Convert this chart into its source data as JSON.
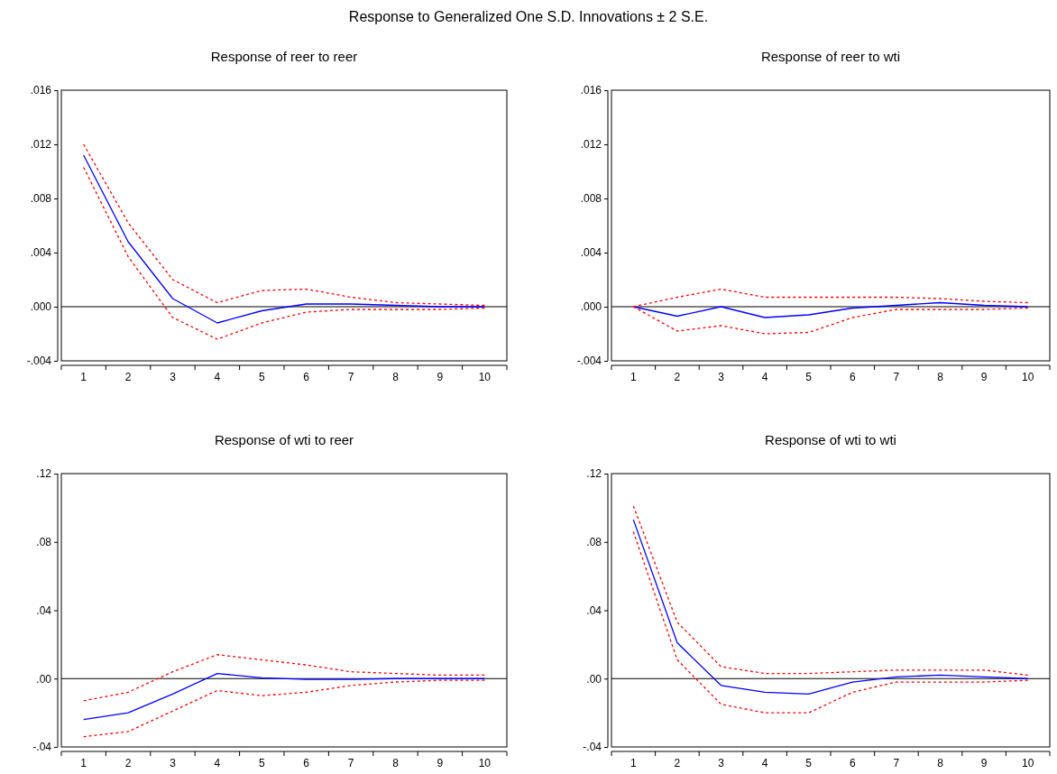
{
  "chart_data": [
    {
      "type": "line",
      "title": "Response of reer to reer",
      "annotations": [
        "Response to Generalized One S.D. Innovations ± 2 S.E."
      ],
      "categories": [
        "1",
        "2",
        "3",
        "4",
        "5",
        "6",
        "7",
        "8",
        "9",
        "10"
      ],
      "ylim": [
        -0.004,
        0.016
      ],
      "yticks": [
        {
          "value": 0.016,
          "label": ".016"
        },
        {
          "value": 0.012,
          "label": ".012"
        },
        {
          "value": 0.008,
          "label": ".008"
        },
        {
          "value": 0.004,
          "label": ".004"
        },
        {
          "value": 0,
          "label": ".000"
        },
        {
          "value": -0.004,
          "label": "-.004"
        }
      ],
      "ref_lines": [
        {
          "axis": "y",
          "value": 0,
          "color": "#000000"
        }
      ],
      "series": [
        {
          "color": "#0000ff",
          "line_style": "solid",
          "values": [
            0.0112,
            0.0048,
            0.0006,
            -0.0012,
            -0.0003,
            0.0002,
            0.0002,
            0.0001,
            0,
            0
          ]
        },
        {
          "color": "#ff0000",
          "line_style": "dotted",
          "values": [
            0.012,
            0.0062,
            0.002,
            0.0003,
            0.0012,
            0.0013,
            0.0007,
            0.0003,
            0.0002,
            0.0001
          ]
        },
        {
          "color": "#ff0000",
          "line_style": "dotted",
          "values": [
            0.0103,
            0.0037,
            -0.0008,
            -0.0024,
            -0.0012,
            -0.0004,
            -0.0002,
            -0.0002,
            -0.0002,
            -0.0001
          ]
        }
      ]
    },
    {
      "type": "line",
      "title": "Response of reer to wti",
      "categories": [
        "1",
        "2",
        "3",
        "4",
        "5",
        "6",
        "7",
        "8",
        "9",
        "10"
      ],
      "ylim": [
        -0.004,
        0.016
      ],
      "yticks": [
        {
          "value": 0.016,
          "label": ".016"
        },
        {
          "value": 0.012,
          "label": ".012"
        },
        {
          "value": 0.008,
          "label": ".008"
        },
        {
          "value": 0.004,
          "label": ".004"
        },
        {
          "value": 0,
          "label": ".000"
        },
        {
          "value": -0.004,
          "label": "-.004"
        }
      ],
      "ref_lines": [
        {
          "axis": "y",
          "value": 0,
          "color": "#000000"
        }
      ],
      "series": [
        {
          "color": "#0000ff",
          "line_style": "solid",
          "values": [
            0,
            -0.0007,
            0,
            -0.0008,
            -0.0006,
            -0.0001,
            0.0001,
            0.0003,
            0.0001,
            0
          ]
        },
        {
          "color": "#ff0000",
          "line_style": "dotted",
          "values": [
            0,
            0.0007,
            0.0013,
            0.0007,
            0.0007,
            0.0007,
            0.0007,
            0.0006,
            0.0004,
            0.0003
          ]
        },
        {
          "color": "#ff0000",
          "line_style": "dotted",
          "values": [
            0,
            -0.0018,
            -0.0014,
            -0.002,
            -0.0019,
            -0.0008,
            -0.0002,
            -0.0002,
            -0.0002,
            -0.0001
          ]
        }
      ]
    },
    {
      "type": "line",
      "title": "Response of wti to reer",
      "categories": [
        "1",
        "2",
        "3",
        "4",
        "5",
        "6",
        "7",
        "8",
        "9",
        "10"
      ],
      "ylim": [
        -0.04,
        0.12
      ],
      "yticks": [
        {
          "value": 0.12,
          "label": ".12"
        },
        {
          "value": 0.08,
          "label": ".08"
        },
        {
          "value": 0.04,
          "label": ".04"
        },
        {
          "value": 0,
          "label": ".00"
        },
        {
          "value": -0.04,
          "label": "-.04"
        }
      ],
      "ref_lines": [
        {
          "axis": "y",
          "value": 0,
          "color": "#000000"
        }
      ],
      "series": [
        {
          "color": "#0000ff",
          "line_style": "solid",
          "values": [
            -0.024,
            -0.02,
            -0.009,
            0.003,
            0.0005,
            -0.0005,
            -0.0005,
            0,
            0,
            0
          ]
        },
        {
          "color": "#ff0000",
          "line_style": "dotted",
          "values": [
            -0.013,
            -0.008,
            0.004,
            0.014,
            0.011,
            0.008,
            0.004,
            0.003,
            0.002,
            0.002
          ]
        },
        {
          "color": "#ff0000",
          "line_style": "dotted",
          "values": [
            -0.034,
            -0.031,
            -0.019,
            -0.007,
            -0.01,
            -0.008,
            -0.004,
            -0.002,
            -0.001,
            -0.001
          ]
        }
      ]
    },
    {
      "type": "line",
      "title": "Response of wti to wti",
      "categories": [
        "1",
        "2",
        "3",
        "4",
        "5",
        "6",
        "7",
        "8",
        "9",
        "10"
      ],
      "ylim": [
        -0.04,
        0.12
      ],
      "yticks": [
        {
          "value": 0.12,
          "label": ".12"
        },
        {
          "value": 0.08,
          "label": ".08"
        },
        {
          "value": 0.04,
          "label": ".04"
        },
        {
          "value": 0,
          "label": ".00"
        },
        {
          "value": -0.04,
          "label": "-.04"
        }
      ],
      "ref_lines": [
        {
          "axis": "y",
          "value": 0,
          "color": "#000000"
        }
      ],
      "series": [
        {
          "color": "#0000ff",
          "line_style": "solid",
          "values": [
            0.093,
            0.021,
            -0.004,
            -0.008,
            -0.009,
            -0.002,
            0.001,
            0.002,
            0.001,
            0
          ]
        },
        {
          "color": "#ff0000",
          "line_style": "dotted",
          "values": [
            0.101,
            0.033,
            0.007,
            0.003,
            0.003,
            0.004,
            0.005,
            0.005,
            0.005,
            0.002
          ]
        },
        {
          "color": "#ff0000",
          "line_style": "dotted",
          "values": [
            0.086,
            0.011,
            -0.015,
            -0.02,
            -0.02,
            -0.008,
            -0.002,
            -0.002,
            -0.002,
            -0.001
          ]
        }
      ]
    }
  ]
}
